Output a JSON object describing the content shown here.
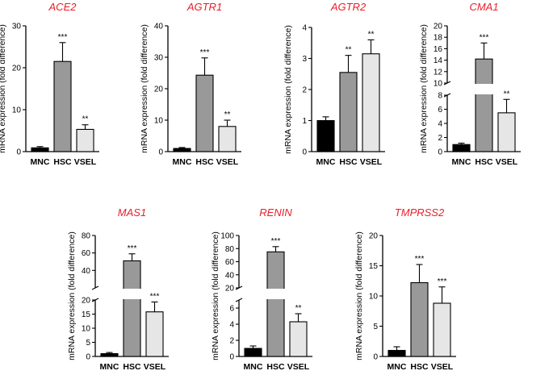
{
  "chart_data": [
    {
      "type": "bar",
      "title": "ACE2",
      "ylabel": "mRNA expression (fold difference)",
      "categories": [
        "MNC",
        "HSC",
        "VSEL"
      ],
      "values": [
        0.9,
        21.5,
        5.3
      ],
      "errors": [
        0.3,
        4.5,
        1.1
      ],
      "significance": [
        "",
        "***",
        "**"
      ],
      "ylim": [
        0,
        30
      ],
      "yticks": [
        "0",
        "10",
        "20",
        "30"
      ]
    },
    {
      "type": "bar",
      "title": "AGTR1",
      "ylabel": "mRNA expression (fold difference)",
      "categories": [
        "MNC",
        "HSC",
        "VSEL"
      ],
      "values": [
        1.0,
        24.3,
        8.0
      ],
      "errors": [
        0.3,
        5.5,
        2.0
      ],
      "significance": [
        "",
        "***",
        "**"
      ],
      "ylim": [
        0,
        40
      ],
      "yticks": [
        "0",
        "10",
        "20",
        "30",
        "40"
      ]
    },
    {
      "type": "bar",
      "title": "AGTR2",
      "ylabel": "mRNA expression (fold difference)",
      "categories": [
        "MNC",
        "HSC",
        "VSEL"
      ],
      "values": [
        1.0,
        2.55,
        3.15
      ],
      "errors": [
        0.12,
        0.55,
        0.45
      ],
      "significance": [
        "",
        "**",
        "**"
      ],
      "ylim": [
        0,
        4
      ],
      "yticks": [
        "0",
        "1",
        "2",
        "3",
        "4"
      ]
    },
    {
      "type": "bar",
      "title": "CMA1",
      "ylabel": "mRNA expression (fold difference)",
      "categories": [
        "MNC",
        "HSC",
        "VSEL"
      ],
      "values": [
        1.0,
        14.2,
        5.5
      ],
      "errors": [
        0.2,
        2.8,
        1.9
      ],
      "significance": [
        "",
        "***",
        "**"
      ],
      "broken_axis": {
        "lower": [
          0,
          8
        ],
        "upper": [
          10,
          20
        ]
      },
      "yticks_lower": [
        "0",
        "2",
        "4",
        "6",
        "8"
      ],
      "yticks_upper": [
        "10",
        "12",
        "14",
        "16",
        "18",
        "20"
      ]
    },
    {
      "type": "bar",
      "title": "MAS1",
      "ylabel": "mRNA expression (fold difference)",
      "categories": [
        "MNC",
        "HSC",
        "VSEL"
      ],
      "values": [
        1.0,
        51.0,
        15.8
      ],
      "errors": [
        0.4,
        8.0,
        3.5
      ],
      "significance": [
        "",
        "***",
        "***"
      ],
      "broken_axis": {
        "lower": [
          0,
          20
        ],
        "upper": [
          20,
          80
        ]
      },
      "yticks_lower": [
        "0",
        "5",
        "10",
        "15",
        "20"
      ],
      "yticks_upper": [
        "40",
        "60",
        "80"
      ]
    },
    {
      "type": "bar",
      "title": "RENIN",
      "ylabel": "mRNA expression (fold difference)",
      "categories": [
        "MNC",
        "HSC",
        "VSEL"
      ],
      "values": [
        1.0,
        75.0,
        4.3
      ],
      "errors": [
        0.3,
        8.0,
        1.0
      ],
      "significance": [
        "",
        "***",
        "**"
      ],
      "broken_axis": {
        "lower": [
          0,
          7
        ],
        "upper": [
          20,
          100
        ]
      },
      "yticks_lower": [
        "0",
        "2",
        "4",
        "6"
      ],
      "yticks_upper": [
        "20",
        "40",
        "60",
        "80",
        "100"
      ]
    },
    {
      "type": "bar",
      "title": "TMPRSS2",
      "ylabel": "mRNA expression (fold difference)",
      "categories": [
        "MNC",
        "HSC",
        "VSEL"
      ],
      "values": [
        1.0,
        12.2,
        8.8
      ],
      "errors": [
        0.6,
        3.0,
        2.7
      ],
      "significance": [
        "",
        "***",
        "***"
      ],
      "ylim": [
        0,
        20
      ],
      "yticks": [
        "0",
        "5",
        "10",
        "15",
        "20"
      ]
    }
  ],
  "colors": {
    "title": "#e8202a",
    "mnc_fill": "#000000",
    "hsc_fill": "#999999",
    "vsel_fill": "#e6e6e6",
    "stroke": "#000000"
  }
}
